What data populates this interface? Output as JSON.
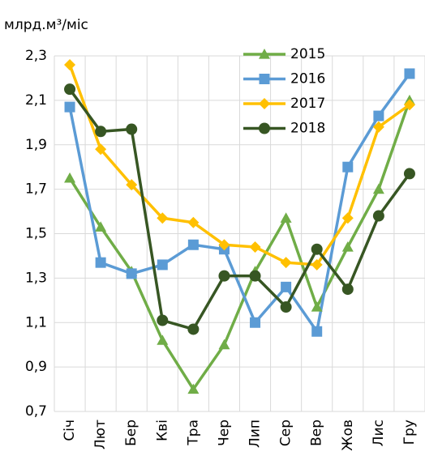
{
  "chart_data": {
    "type": "line",
    "title": "млрд.м³/міс",
    "categories": [
      "Січ",
      "Лют",
      "Бер",
      "Кві",
      "Тра",
      "Чер",
      "Лип",
      "Сер",
      "Вер",
      "Жов",
      "Лис",
      "Гру"
    ],
    "series": [
      {
        "name": "2015",
        "color": "#70ad47",
        "marker": "triangle",
        "values": [
          1.75,
          1.53,
          1.33,
          1.02,
          0.8,
          1.0,
          1.33,
          1.57,
          1.17,
          1.44,
          1.7,
          2.1
        ]
      },
      {
        "name": "2016",
        "color": "#5b9bd5",
        "marker": "square",
        "values": [
          2.07,
          1.37,
          1.32,
          1.36,
          1.45,
          1.43,
          1.1,
          1.26,
          1.06,
          1.8,
          2.03,
          2.22
        ]
      },
      {
        "name": "2017",
        "color": "#ffc000",
        "marker": "diamond",
        "values": [
          2.26,
          1.88,
          1.72,
          1.57,
          1.55,
          1.45,
          1.44,
          1.37,
          1.36,
          1.57,
          1.98,
          2.08
        ]
      },
      {
        "name": "2018",
        "color": "#375623",
        "marker": "circle",
        "values": [
          2.15,
          1.96,
          1.97,
          1.11,
          1.07,
          1.31,
          1.31,
          1.17,
          1.43,
          1.25,
          1.58,
          1.77
        ]
      }
    ],
    "ylim": [
      0.7,
      2.3
    ],
    "yticks": [
      {
        "value": 0.7,
        "label": "0,7"
      },
      {
        "value": 0.9,
        "label": "0,9"
      },
      {
        "value": 1.1,
        "label": "1,1"
      },
      {
        "value": 1.3,
        "label": "1,3"
      },
      {
        "value": 1.5,
        "label": "1,5"
      },
      {
        "value": 1.7,
        "label": "1,7"
      },
      {
        "value": 1.9,
        "label": "1,9"
      },
      {
        "value": 2.1,
        "label": "2,1"
      },
      {
        "value": 2.3,
        "label": "2,3"
      }
    ],
    "grid": true
  }
}
